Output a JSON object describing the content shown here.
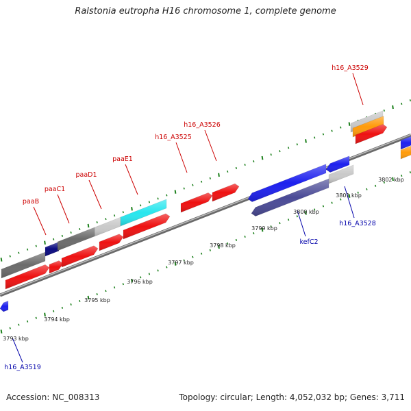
{
  "title": "Ralstonia eutropha H16 chromosome 1, complete genome",
  "footer": {
    "accession": "Accession: NC_008313",
    "topology": "Topology: circular; Length: 4,052,032 bp; Genes: 3,711"
  },
  "colors": {
    "backbone": "#888888",
    "ticks": "#1a7f1a",
    "label_forward": "#cc0000",
    "label_reverse": "#0000aa"
  },
  "ticks": [
    {
      "label": "3793 kbp"
    },
    {
      "label": "3794 kbp"
    },
    {
      "label": "3795 kbp"
    },
    {
      "label": "3796 kbp"
    },
    {
      "label": "3797 kbp"
    },
    {
      "label": "3798 kbp"
    },
    {
      "label": "3799 kbp"
    },
    {
      "label": "3800 kbp"
    },
    {
      "label": "3801 kbp"
    },
    {
      "label": "3802 kbp"
    }
  ],
  "gene_labels": [
    {
      "text": "paaB",
      "strand": "forward"
    },
    {
      "text": "paaC1",
      "strand": "forward"
    },
    {
      "text": "paaD1",
      "strand": "forward"
    },
    {
      "text": "paaE1",
      "strand": "forward"
    },
    {
      "text": "h16_A3525",
      "strand": "forward"
    },
    {
      "text": "h16_A3526",
      "strand": "forward"
    },
    {
      "text": "h16_A3529",
      "strand": "forward"
    },
    {
      "text": "kefC2",
      "strand": "reverse"
    },
    {
      "text": "h16_A3528",
      "strand": "reverse"
    },
    {
      "text": "h16_A3519",
      "strand": "reverse"
    }
  ]
}
